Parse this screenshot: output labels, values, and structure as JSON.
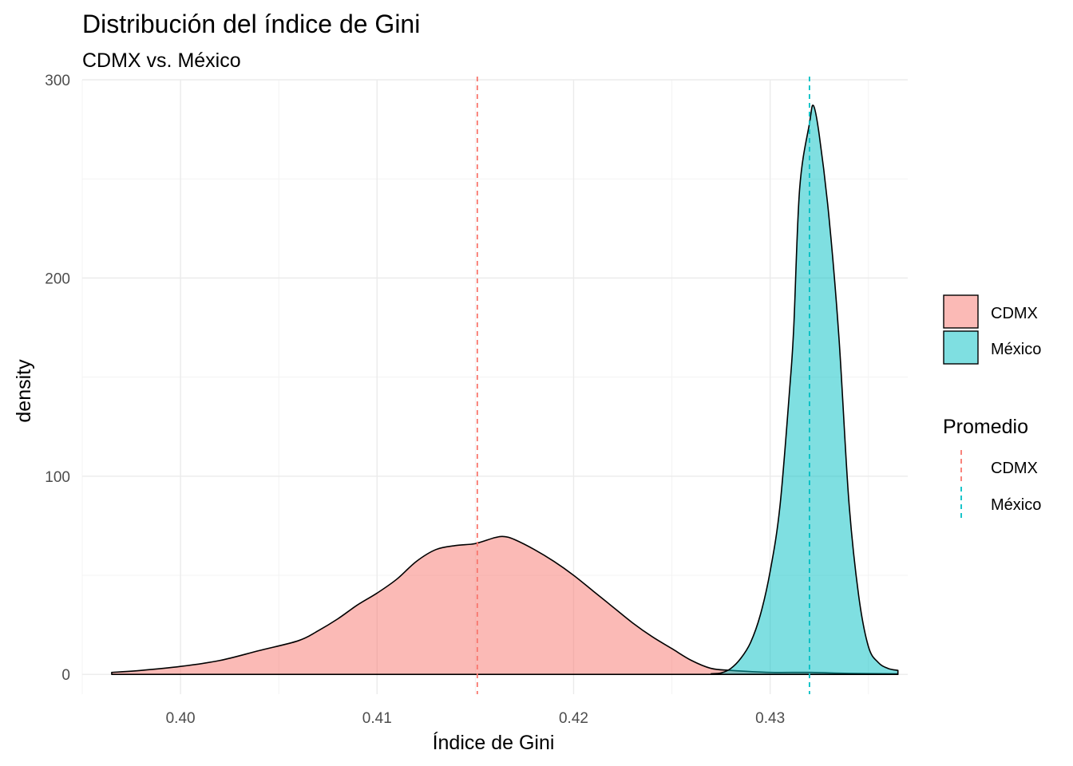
{
  "chart_data": {
    "type": "area",
    "title": "Distribución del índice de Gini",
    "subtitle": "CDMX vs. México",
    "xlabel": "Índice de Gini",
    "ylabel": "density",
    "xlim": [
      0.395,
      0.437
    ],
    "ylim": [
      -10,
      300
    ],
    "x_ticks": [
      0.4,
      0.41,
      0.42,
      0.43
    ],
    "x_tick_labels": [
      "0.40",
      "0.41",
      "0.42",
      "0.43"
    ],
    "y_ticks": [
      0,
      100,
      200,
      300
    ],
    "y_tick_labels": [
      "0",
      "100",
      "200",
      "300"
    ],
    "grid": true,
    "legend_position": "right",
    "fill_legend": {
      "title": "",
      "entries": [
        {
          "label": "CDMX",
          "color": "#F8766D"
        },
        {
          "label": "México",
          "color": "#00BFC4"
        }
      ]
    },
    "line_legend": {
      "title": "Promedio",
      "entries": [
        {
          "label": "CDMX",
          "color": "#F8766D"
        },
        {
          "label": "México",
          "color": "#00BFC4"
        }
      ]
    },
    "series": [
      {
        "name": "CDMX",
        "color": "#F8766D",
        "fill_opacity": 0.5,
        "mean": 0.4151,
        "points": [
          [
            0.3965,
            1
          ],
          [
            0.398,
            2
          ],
          [
            0.4,
            4
          ],
          [
            0.402,
            7
          ],
          [
            0.404,
            12
          ],
          [
            0.406,
            17
          ],
          [
            0.407,
            22
          ],
          [
            0.408,
            28
          ],
          [
            0.409,
            35
          ],
          [
            0.41,
            41
          ],
          [
            0.411,
            48
          ],
          [
            0.412,
            57
          ],
          [
            0.413,
            63
          ],
          [
            0.414,
            65
          ],
          [
            0.415,
            66
          ],
          [
            0.416,
            69
          ],
          [
            0.4165,
            69.5
          ],
          [
            0.417,
            68
          ],
          [
            0.418,
            63
          ],
          [
            0.419,
            57
          ],
          [
            0.42,
            50
          ],
          [
            0.421,
            42
          ],
          [
            0.422,
            34
          ],
          [
            0.423,
            26
          ],
          [
            0.424,
            19
          ],
          [
            0.425,
            13
          ],
          [
            0.426,
            7
          ],
          [
            0.427,
            3
          ],
          [
            0.428,
            2
          ],
          [
            0.43,
            1
          ],
          [
            0.432,
            1
          ],
          [
            0.434,
            0.5
          ],
          [
            0.4365,
            0.3
          ]
        ]
      },
      {
        "name": "México",
        "color": "#00BFC4",
        "fill_opacity": 0.5,
        "mean": 0.432,
        "points": [
          [
            0.427,
            0.3
          ],
          [
            0.4275,
            0.7
          ],
          [
            0.428,
            3
          ],
          [
            0.4285,
            8
          ],
          [
            0.429,
            16
          ],
          [
            0.4295,
            30
          ],
          [
            0.43,
            52
          ],
          [
            0.4305,
            85
          ],
          [
            0.431,
            145
          ],
          [
            0.4312,
            175
          ],
          [
            0.4315,
            245
          ],
          [
            0.432,
            278
          ],
          [
            0.4322,
            287
          ],
          [
            0.4325,
            272
          ],
          [
            0.433,
            230
          ],
          [
            0.4335,
            170
          ],
          [
            0.434,
            88
          ],
          [
            0.4345,
            40
          ],
          [
            0.435,
            14
          ],
          [
            0.4355,
            6
          ],
          [
            0.436,
            3
          ],
          [
            0.4365,
            2
          ]
        ]
      }
    ]
  }
}
